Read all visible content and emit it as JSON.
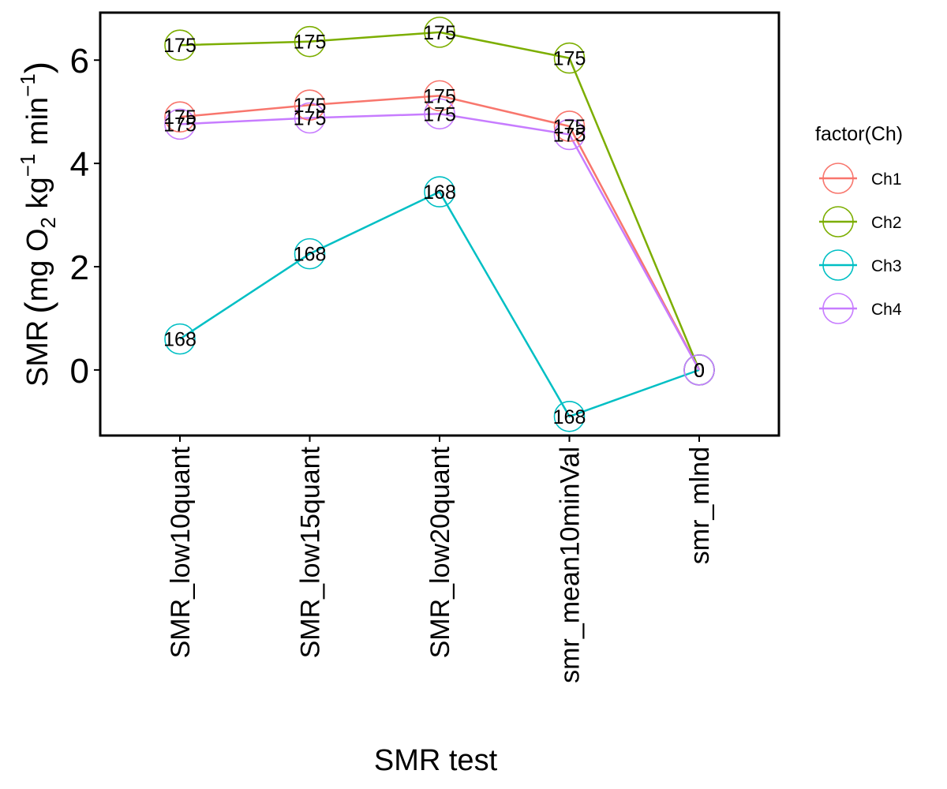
{
  "chart_data": {
    "type": "line",
    "categories": [
      "SMR_low10quant",
      "SMR_low15quant",
      "SMR_low20quant",
      "smr_mean10minVal",
      "smr_mlnd"
    ],
    "series": [
      {
        "name": "Ch1",
        "color": "#F8766D",
        "values": [
          4.9,
          5.13,
          5.31,
          4.72,
          0
        ],
        "labels": [
          "175",
          "175",
          "175",
          "175",
          "0"
        ]
      },
      {
        "name": "Ch2",
        "color": "#7CAE00",
        "values": [
          6.29,
          6.36,
          6.54,
          6.04,
          0
        ],
        "labels": [
          "175",
          "175",
          "175",
          "175",
          "0"
        ]
      },
      {
        "name": "Ch3",
        "color": "#00BFC4",
        "values": [
          0.6,
          2.25,
          3.45,
          -0.9,
          0
        ],
        "labels": [
          "168",
          "168",
          "168",
          "168",
          "0"
        ]
      },
      {
        "name": "Ch4",
        "color": "#C77CFF",
        "values": [
          4.76,
          4.88,
          4.96,
          4.56,
          0
        ],
        "labels": [
          "175",
          "175",
          "175",
          "175",
          "0"
        ]
      }
    ],
    "xlabel": "SMR test",
    "ylabel": "SMR (mg O2 kg−1 min−1)",
    "ylim": [
      -1.27,
      6.92
    ],
    "yticks": [
      0,
      2,
      4,
      6
    ],
    "grid": false,
    "legend": {
      "title": "factor(Ch)",
      "position": "right"
    }
  }
}
